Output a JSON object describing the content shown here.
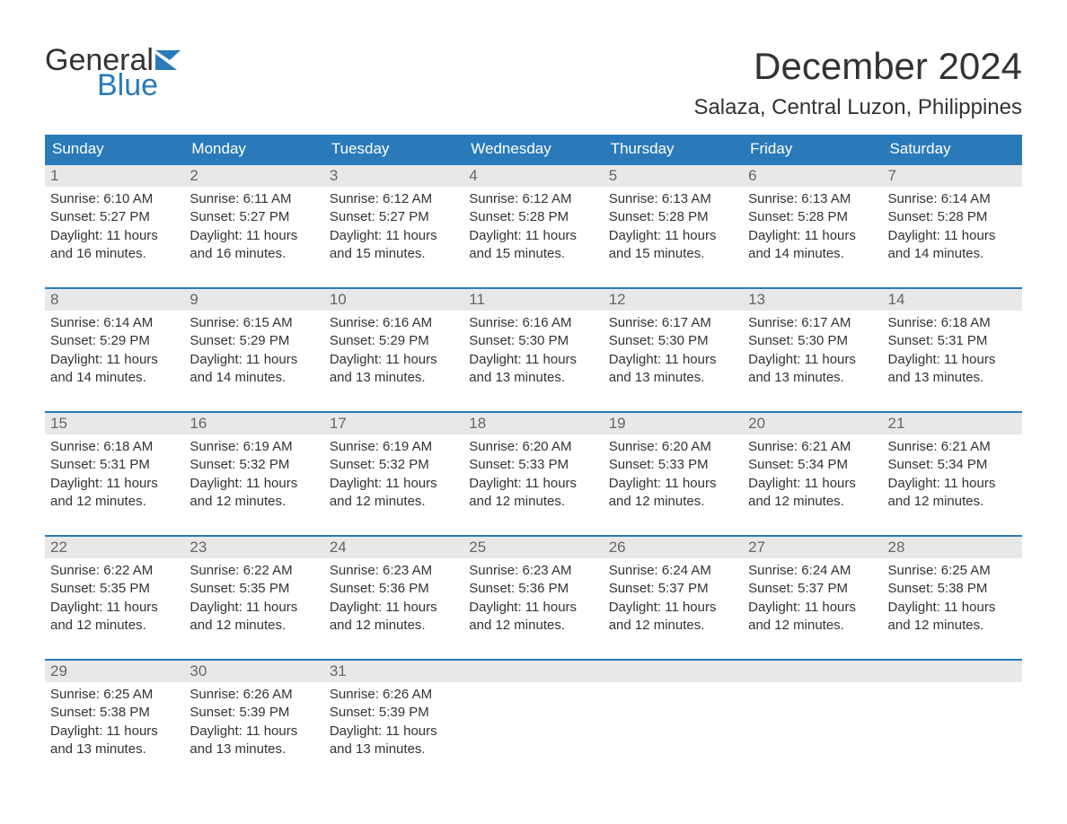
{
  "logo": {
    "word1": "General",
    "word2": "Blue"
  },
  "header": {
    "title": "December 2024",
    "location": "Salaza, Central Luzon, Philippines"
  },
  "colors": {
    "accent": "#2a7ab9",
    "header_bg": "#2a7ab9",
    "header_text": "#ffffff",
    "daynum_bg": "#e8e8e8",
    "daynum_text": "#666666",
    "body_text": "#333333",
    "logo_blue": "#2a7ab9",
    "page_bg": "#ffffff"
  },
  "typography": {
    "title_fontsize": 42,
    "location_fontsize": 24,
    "weekday_fontsize": 17,
    "daynum_fontsize": 17,
    "body_fontsize": 15,
    "logo_fontsize": 34
  },
  "weekdays": [
    "Sunday",
    "Monday",
    "Tuesday",
    "Wednesday",
    "Thursday",
    "Friday",
    "Saturday"
  ],
  "days": [
    {
      "n": "1",
      "sunrise": "Sunrise: 6:10 AM",
      "sunset": "Sunset: 5:27 PM",
      "dl1": "Daylight: 11 hours",
      "dl2": "and 16 minutes."
    },
    {
      "n": "2",
      "sunrise": "Sunrise: 6:11 AM",
      "sunset": "Sunset: 5:27 PM",
      "dl1": "Daylight: 11 hours",
      "dl2": "and 16 minutes."
    },
    {
      "n": "3",
      "sunrise": "Sunrise: 6:12 AM",
      "sunset": "Sunset: 5:27 PM",
      "dl1": "Daylight: 11 hours",
      "dl2": "and 15 minutes."
    },
    {
      "n": "4",
      "sunrise": "Sunrise: 6:12 AM",
      "sunset": "Sunset: 5:28 PM",
      "dl1": "Daylight: 11 hours",
      "dl2": "and 15 minutes."
    },
    {
      "n": "5",
      "sunrise": "Sunrise: 6:13 AM",
      "sunset": "Sunset: 5:28 PM",
      "dl1": "Daylight: 11 hours",
      "dl2": "and 15 minutes."
    },
    {
      "n": "6",
      "sunrise": "Sunrise: 6:13 AM",
      "sunset": "Sunset: 5:28 PM",
      "dl1": "Daylight: 11 hours",
      "dl2": "and 14 minutes."
    },
    {
      "n": "7",
      "sunrise": "Sunrise: 6:14 AM",
      "sunset": "Sunset: 5:28 PM",
      "dl1": "Daylight: 11 hours",
      "dl2": "and 14 minutes."
    },
    {
      "n": "8",
      "sunrise": "Sunrise: 6:14 AM",
      "sunset": "Sunset: 5:29 PM",
      "dl1": "Daylight: 11 hours",
      "dl2": "and 14 minutes."
    },
    {
      "n": "9",
      "sunrise": "Sunrise: 6:15 AM",
      "sunset": "Sunset: 5:29 PM",
      "dl1": "Daylight: 11 hours",
      "dl2": "and 14 minutes."
    },
    {
      "n": "10",
      "sunrise": "Sunrise: 6:16 AM",
      "sunset": "Sunset: 5:29 PM",
      "dl1": "Daylight: 11 hours",
      "dl2": "and 13 minutes."
    },
    {
      "n": "11",
      "sunrise": "Sunrise: 6:16 AM",
      "sunset": "Sunset: 5:30 PM",
      "dl1": "Daylight: 11 hours",
      "dl2": "and 13 minutes."
    },
    {
      "n": "12",
      "sunrise": "Sunrise: 6:17 AM",
      "sunset": "Sunset: 5:30 PM",
      "dl1": "Daylight: 11 hours",
      "dl2": "and 13 minutes."
    },
    {
      "n": "13",
      "sunrise": "Sunrise: 6:17 AM",
      "sunset": "Sunset: 5:30 PM",
      "dl1": "Daylight: 11 hours",
      "dl2": "and 13 minutes."
    },
    {
      "n": "14",
      "sunrise": "Sunrise: 6:18 AM",
      "sunset": "Sunset: 5:31 PM",
      "dl1": "Daylight: 11 hours",
      "dl2": "and 13 minutes."
    },
    {
      "n": "15",
      "sunrise": "Sunrise: 6:18 AM",
      "sunset": "Sunset: 5:31 PM",
      "dl1": "Daylight: 11 hours",
      "dl2": "and 12 minutes."
    },
    {
      "n": "16",
      "sunrise": "Sunrise: 6:19 AM",
      "sunset": "Sunset: 5:32 PM",
      "dl1": "Daylight: 11 hours",
      "dl2": "and 12 minutes."
    },
    {
      "n": "17",
      "sunrise": "Sunrise: 6:19 AM",
      "sunset": "Sunset: 5:32 PM",
      "dl1": "Daylight: 11 hours",
      "dl2": "and 12 minutes."
    },
    {
      "n": "18",
      "sunrise": "Sunrise: 6:20 AM",
      "sunset": "Sunset: 5:33 PM",
      "dl1": "Daylight: 11 hours",
      "dl2": "and 12 minutes."
    },
    {
      "n": "19",
      "sunrise": "Sunrise: 6:20 AM",
      "sunset": "Sunset: 5:33 PM",
      "dl1": "Daylight: 11 hours",
      "dl2": "and 12 minutes."
    },
    {
      "n": "20",
      "sunrise": "Sunrise: 6:21 AM",
      "sunset": "Sunset: 5:34 PM",
      "dl1": "Daylight: 11 hours",
      "dl2": "and 12 minutes."
    },
    {
      "n": "21",
      "sunrise": "Sunrise: 6:21 AM",
      "sunset": "Sunset: 5:34 PM",
      "dl1": "Daylight: 11 hours",
      "dl2": "and 12 minutes."
    },
    {
      "n": "22",
      "sunrise": "Sunrise: 6:22 AM",
      "sunset": "Sunset: 5:35 PM",
      "dl1": "Daylight: 11 hours",
      "dl2": "and 12 minutes."
    },
    {
      "n": "23",
      "sunrise": "Sunrise: 6:22 AM",
      "sunset": "Sunset: 5:35 PM",
      "dl1": "Daylight: 11 hours",
      "dl2": "and 12 minutes."
    },
    {
      "n": "24",
      "sunrise": "Sunrise: 6:23 AM",
      "sunset": "Sunset: 5:36 PM",
      "dl1": "Daylight: 11 hours",
      "dl2": "and 12 minutes."
    },
    {
      "n": "25",
      "sunrise": "Sunrise: 6:23 AM",
      "sunset": "Sunset: 5:36 PM",
      "dl1": "Daylight: 11 hours",
      "dl2": "and 12 minutes."
    },
    {
      "n": "26",
      "sunrise": "Sunrise: 6:24 AM",
      "sunset": "Sunset: 5:37 PM",
      "dl1": "Daylight: 11 hours",
      "dl2": "and 12 minutes."
    },
    {
      "n": "27",
      "sunrise": "Sunrise: 6:24 AM",
      "sunset": "Sunset: 5:37 PM",
      "dl1": "Daylight: 11 hours",
      "dl2": "and 12 minutes."
    },
    {
      "n": "28",
      "sunrise": "Sunrise: 6:25 AM",
      "sunset": "Sunset: 5:38 PM",
      "dl1": "Daylight: 11 hours",
      "dl2": "and 12 minutes."
    },
    {
      "n": "29",
      "sunrise": "Sunrise: 6:25 AM",
      "sunset": "Sunset: 5:38 PM",
      "dl1": "Daylight: 11 hours",
      "dl2": "and 13 minutes."
    },
    {
      "n": "30",
      "sunrise": "Sunrise: 6:26 AM",
      "sunset": "Sunset: 5:39 PM",
      "dl1": "Daylight: 11 hours",
      "dl2": "and 13 minutes."
    },
    {
      "n": "31",
      "sunrise": "Sunrise: 6:26 AM",
      "sunset": "Sunset: 5:39 PM",
      "dl1": "Daylight: 11 hours",
      "dl2": "and 13 minutes."
    }
  ],
  "layout": {
    "weeks": 5,
    "days_per_week": 7,
    "trailing_empty": 4
  }
}
